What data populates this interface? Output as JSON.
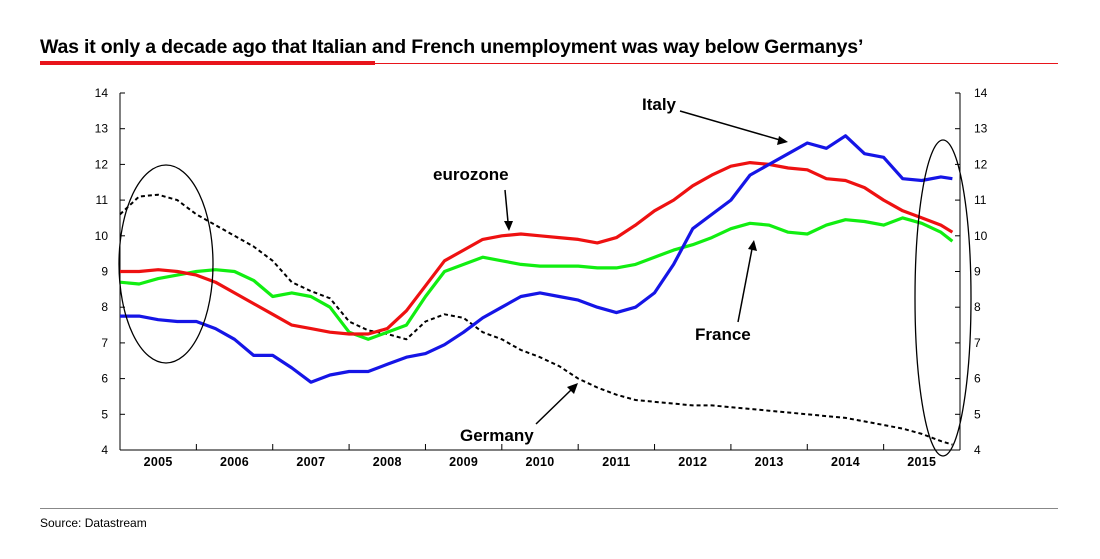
{
  "title": "Was it only a decade ago that Italian and French unemployment was way below Germanys’",
  "source": "Source: Datastream",
  "colors": {
    "italy": "#1515e6",
    "eurozone": "#ee1111",
    "france": "#11ee11",
    "germany": "#000000",
    "accent": "#e8141b"
  },
  "chart_data": {
    "type": "line",
    "title": "Was it only a decade ago that Italian and French unemployment was way below Germanys’",
    "xlabel": "",
    "ylabel": "",
    "xlim": [
      2005,
      2016
    ],
    "ylim": [
      4,
      14
    ],
    "yticks": [
      4,
      5,
      6,
      7,
      8,
      9,
      10,
      11,
      12,
      13,
      14
    ],
    "year_labels": [
      "2005",
      "2006",
      "2007",
      "2008",
      "2009",
      "2010",
      "2011",
      "2012",
      "2013",
      "2014",
      "2015"
    ],
    "annotations": [
      "Italy",
      "eurozone",
      "France",
      "Germany"
    ],
    "grid": false,
    "series": [
      {
        "name": "Italy",
        "color": "#1515e6",
        "dash": false,
        "x": [
          2005.0,
          2005.25,
          2005.5,
          2005.75,
          2006.0,
          2006.25,
          2006.5,
          2006.75,
          2007.0,
          2007.25,
          2007.5,
          2007.75,
          2008.0,
          2008.25,
          2008.5,
          2008.75,
          2009.0,
          2009.25,
          2009.5,
          2009.75,
          2010.0,
          2010.25,
          2010.5,
          2010.75,
          2011.0,
          2011.25,
          2011.5,
          2011.75,
          2012.0,
          2012.25,
          2012.5,
          2012.75,
          2013.0,
          2013.25,
          2013.5,
          2013.75,
          2014.0,
          2014.25,
          2014.5,
          2014.75,
          2015.0,
          2015.25,
          2015.5,
          2015.75,
          2015.9
        ],
        "y": [
          7.75,
          7.75,
          7.65,
          7.6,
          7.6,
          7.4,
          7.1,
          6.65,
          6.65,
          6.3,
          5.9,
          6.1,
          6.2,
          6.2,
          6.4,
          6.6,
          6.7,
          6.95,
          7.3,
          7.7,
          8.0,
          8.3,
          8.4,
          8.3,
          8.2,
          8.0,
          7.85,
          8.0,
          8.4,
          9.2,
          10.2,
          10.6,
          11.0,
          11.7,
          12.0,
          12.3,
          12.6,
          12.45,
          12.8,
          12.3,
          12.2,
          11.6,
          11.55,
          11.65,
          11.6
        ]
      },
      {
        "name": "eurozone",
        "color": "#ee1111",
        "dash": false,
        "x": [
          2005.0,
          2005.25,
          2005.5,
          2005.75,
          2006.0,
          2006.25,
          2006.5,
          2006.75,
          2007.0,
          2007.25,
          2007.5,
          2007.75,
          2008.0,
          2008.25,
          2008.5,
          2008.75,
          2009.0,
          2009.25,
          2009.5,
          2009.75,
          2010.0,
          2010.25,
          2010.5,
          2010.75,
          2011.0,
          2011.25,
          2011.5,
          2011.75,
          2012.0,
          2012.25,
          2012.5,
          2012.75,
          2013.0,
          2013.25,
          2013.5,
          2013.75,
          2014.0,
          2014.25,
          2014.5,
          2014.75,
          2015.0,
          2015.25,
          2015.5,
          2015.75,
          2015.9
        ],
        "y": [
          9.0,
          9.0,
          9.05,
          9.0,
          8.9,
          8.7,
          8.4,
          8.1,
          7.8,
          7.5,
          7.4,
          7.3,
          7.25,
          7.25,
          7.4,
          7.9,
          8.6,
          9.3,
          9.6,
          9.9,
          10.0,
          10.05,
          10.0,
          9.95,
          9.9,
          9.8,
          9.95,
          10.3,
          10.7,
          11.0,
          11.4,
          11.7,
          11.95,
          12.05,
          12.0,
          11.9,
          11.85,
          11.6,
          11.55,
          11.35,
          11.0,
          10.7,
          10.5,
          10.3,
          10.1
        ]
      },
      {
        "name": "France",
        "color": "#11ee11",
        "dash": false,
        "x": [
          2005.0,
          2005.25,
          2005.5,
          2005.75,
          2006.0,
          2006.25,
          2006.5,
          2006.75,
          2007.0,
          2007.25,
          2007.5,
          2007.75,
          2008.0,
          2008.25,
          2008.5,
          2008.75,
          2009.0,
          2009.25,
          2009.5,
          2009.75,
          2010.0,
          2010.25,
          2010.5,
          2010.75,
          2011.0,
          2011.25,
          2011.5,
          2011.75,
          2012.0,
          2012.25,
          2012.5,
          2012.75,
          2013.0,
          2013.25,
          2013.5,
          2013.75,
          2014.0,
          2014.25,
          2014.5,
          2014.75,
          2015.0,
          2015.25,
          2015.5,
          2015.75,
          2015.9
        ],
        "y": [
          8.7,
          8.65,
          8.8,
          8.9,
          9.0,
          9.05,
          9.0,
          8.75,
          8.3,
          8.4,
          8.3,
          8.0,
          7.3,
          7.1,
          7.3,
          7.5,
          8.3,
          9.0,
          9.2,
          9.4,
          9.3,
          9.2,
          9.15,
          9.15,
          9.15,
          9.1,
          9.1,
          9.2,
          9.4,
          9.6,
          9.75,
          9.95,
          10.2,
          10.35,
          10.3,
          10.1,
          10.05,
          10.3,
          10.45,
          10.4,
          10.3,
          10.5,
          10.35,
          10.1,
          9.85
        ]
      },
      {
        "name": "Germany",
        "color": "#000000",
        "dash": true,
        "x": [
          2005.0,
          2005.25,
          2005.5,
          2005.75,
          2006.0,
          2006.25,
          2006.5,
          2006.75,
          2007.0,
          2007.25,
          2007.5,
          2007.75,
          2008.0,
          2008.25,
          2008.5,
          2008.75,
          2009.0,
          2009.25,
          2009.5,
          2009.75,
          2010.0,
          2010.25,
          2010.5,
          2010.75,
          2011.0,
          2011.25,
          2011.5,
          2011.75,
          2012.0,
          2012.25,
          2012.5,
          2012.75,
          2013.0,
          2013.25,
          2013.5,
          2013.75,
          2014.0,
          2014.25,
          2014.5,
          2014.75,
          2015.0,
          2015.25,
          2015.5,
          2015.75,
          2015.9
        ],
        "y": [
          10.6,
          11.1,
          11.15,
          11.0,
          10.6,
          10.3,
          10.0,
          9.7,
          9.3,
          8.7,
          8.45,
          8.25,
          7.6,
          7.35,
          7.25,
          7.1,
          7.6,
          7.8,
          7.7,
          7.3,
          7.1,
          6.8,
          6.6,
          6.35,
          6.0,
          5.75,
          5.55,
          5.4,
          5.35,
          5.3,
          5.25,
          5.25,
          5.2,
          5.15,
          5.1,
          5.05,
          5.0,
          4.95,
          4.9,
          4.8,
          4.7,
          4.6,
          4.45,
          4.25,
          4.15
        ]
      }
    ]
  }
}
